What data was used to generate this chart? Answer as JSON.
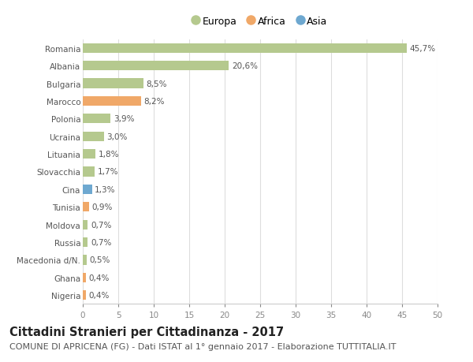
{
  "countries": [
    "Romania",
    "Albania",
    "Bulgaria",
    "Marocco",
    "Polonia",
    "Ucraina",
    "Lituania",
    "Slovacchia",
    "Cina",
    "Tunisia",
    "Moldova",
    "Russia",
    "Macedonia d/N.",
    "Ghana",
    "Nigeria"
  ],
  "values": [
    45.7,
    20.6,
    8.5,
    8.2,
    3.9,
    3.0,
    1.8,
    1.7,
    1.3,
    0.9,
    0.7,
    0.7,
    0.5,
    0.4,
    0.4
  ],
  "labels": [
    "45,7%",
    "20,6%",
    "8,5%",
    "8,2%",
    "3,9%",
    "3,0%",
    "1,8%",
    "1,7%",
    "1,3%",
    "0,9%",
    "0,7%",
    "0,7%",
    "0,5%",
    "0,4%",
    "0,4%"
  ],
  "continents": [
    "Europa",
    "Europa",
    "Europa",
    "Africa",
    "Europa",
    "Europa",
    "Europa",
    "Europa",
    "Asia",
    "Africa",
    "Europa",
    "Europa",
    "Europa",
    "Africa",
    "Africa"
  ],
  "continent_colors": {
    "Europa": "#b5c98e",
    "Africa": "#f0a868",
    "Asia": "#6ea8d0"
  },
  "xlim": [
    0,
    50
  ],
  "xticks": [
    0,
    5,
    10,
    15,
    20,
    25,
    30,
    35,
    40,
    45,
    50
  ],
  "title": "Cittadini Stranieri per Cittadinanza - 2017",
  "subtitle": "COMUNE DI APRICENA (FG) - Dati ISTAT al 1° gennaio 2017 - Elaborazione TUTTITALIA.IT",
  "background_color": "#ffffff",
  "grid_color": "#dddddd",
  "bar_height": 0.55,
  "title_fontsize": 10.5,
  "subtitle_fontsize": 8.0,
  "label_fontsize": 7.5,
  "tick_fontsize": 7.5,
  "legend_fontsize": 9
}
